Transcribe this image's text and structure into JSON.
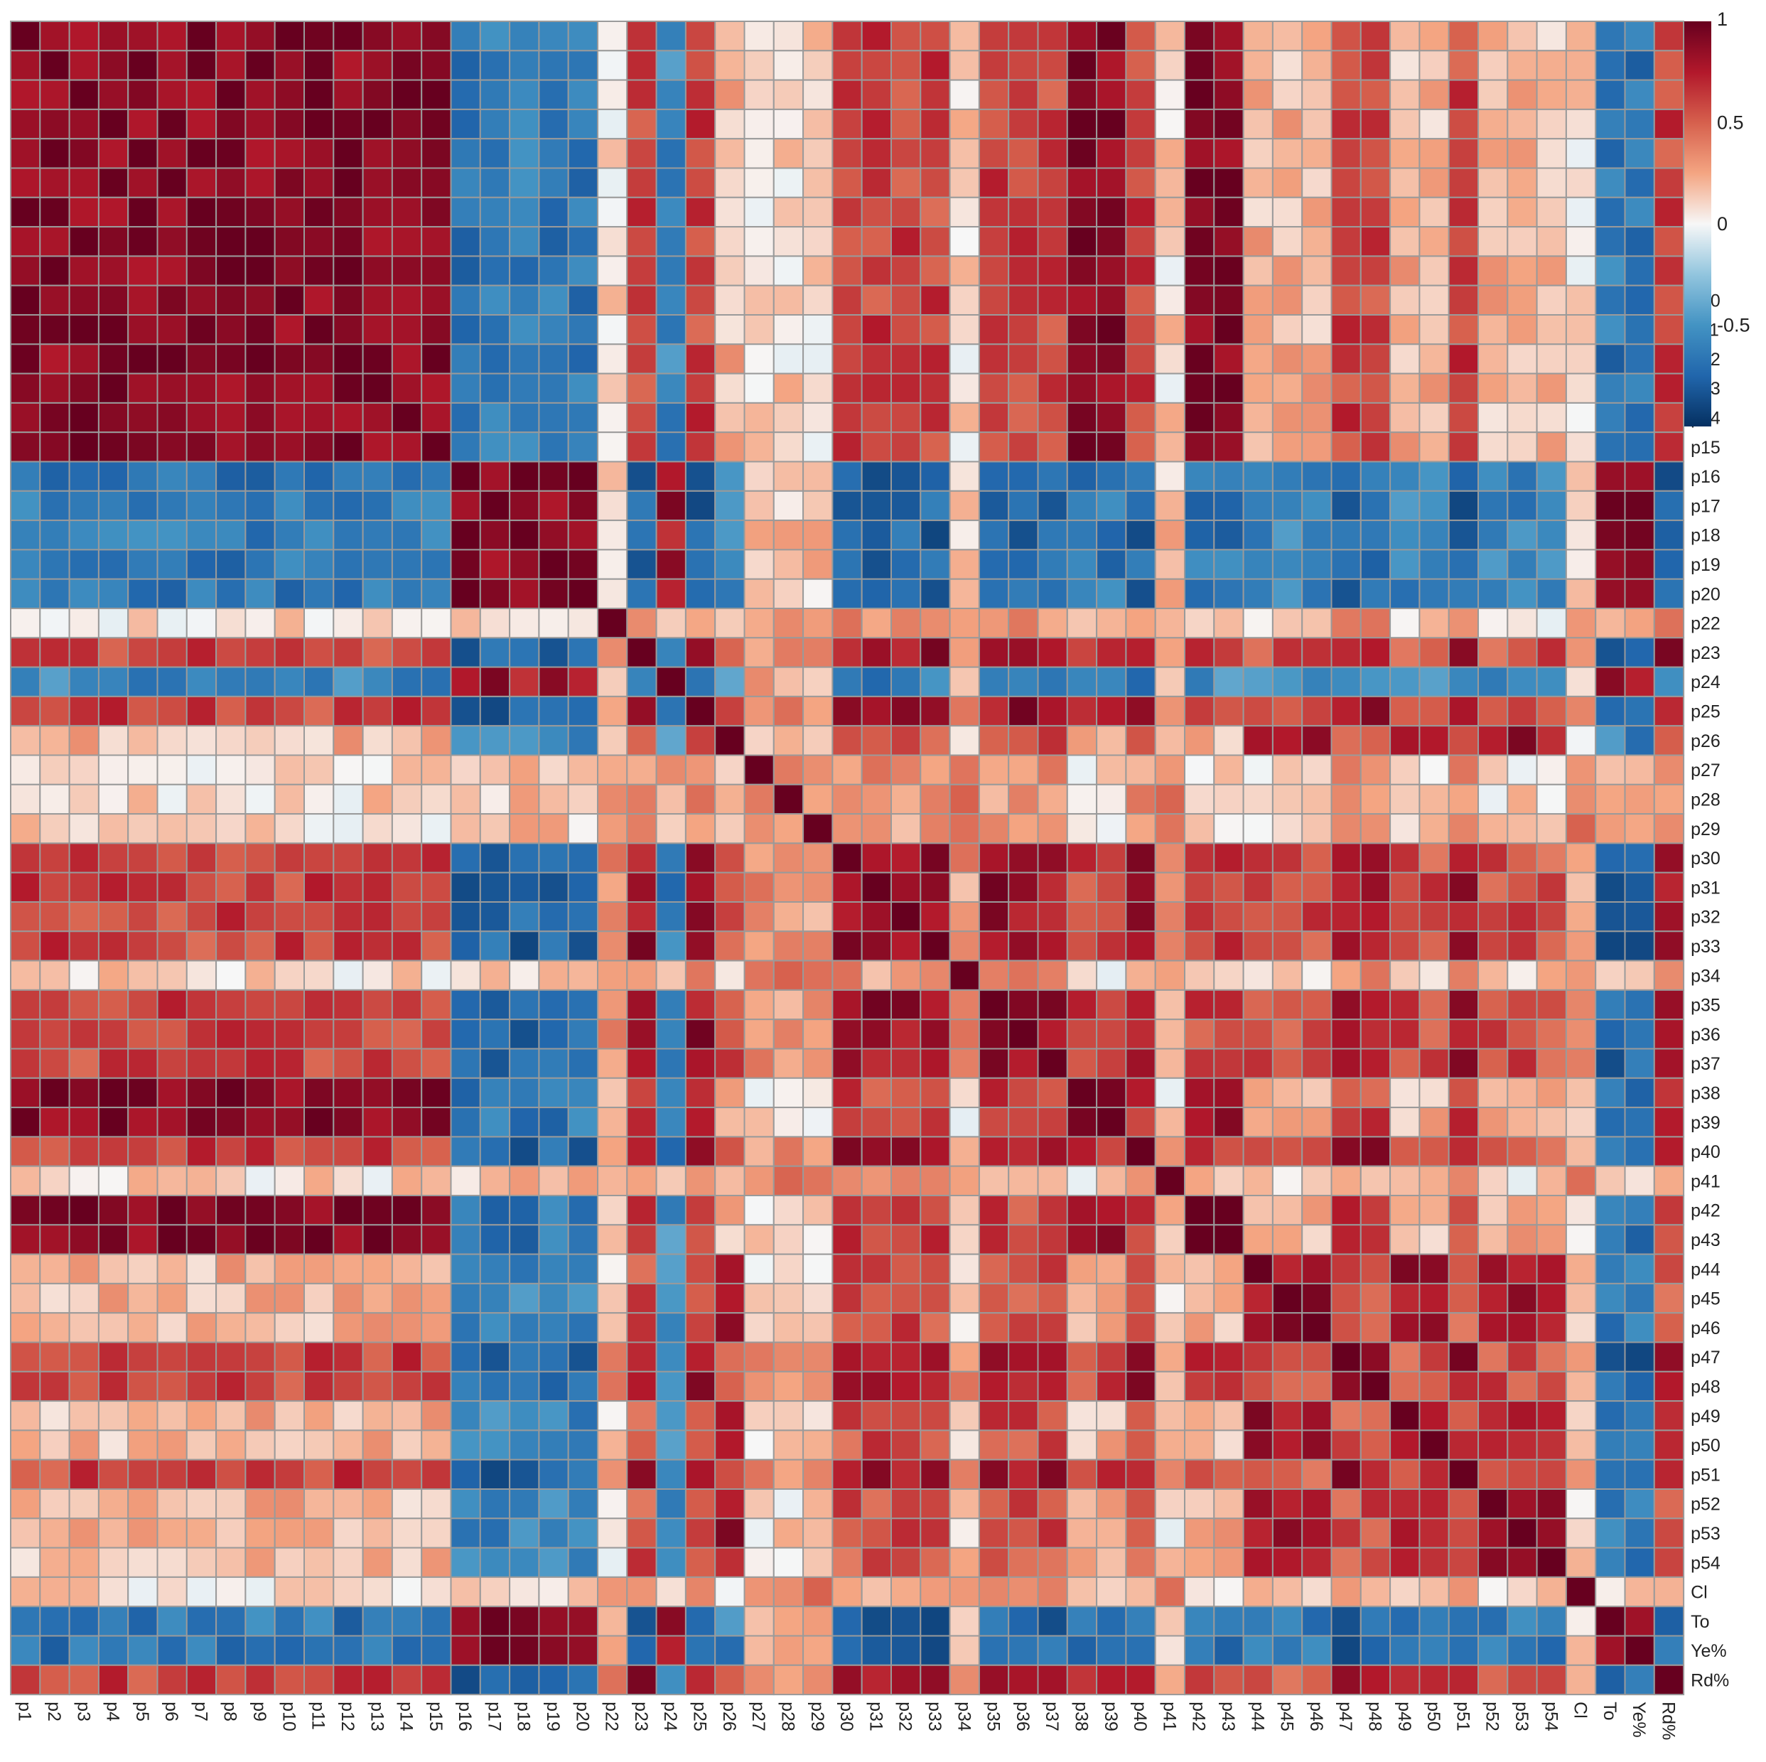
{
  "chart_data": {
    "type": "heatmap",
    "title": "",
    "xlabel": "",
    "ylabel": "",
    "labels": [
      "p1",
      "p2",
      "p3",
      "p4",
      "p5",
      "p6",
      "p7",
      "p8",
      "p9",
      "p10",
      "p11",
      "p12",
      "p13",
      "p14",
      "p15",
      "p16",
      "p17",
      "p18",
      "p19",
      "p20",
      "p22",
      "p23",
      "p24",
      "p25",
      "p26",
      "p27",
      "p28",
      "p29",
      "p30",
      "p31",
      "p32",
      "p33",
      "p34",
      "p35",
      "p36",
      "p37",
      "p38",
      "p39",
      "p40",
      "p41",
      "p42",
      "p43",
      "p44",
      "p45",
      "p46",
      "p47",
      "p48",
      "p49",
      "p50",
      "p51",
      "p52",
      "p53",
      "p54",
      "Cl",
      "To",
      "Ye%",
      "Rd%"
    ],
    "color_scale": {
      "min": -1,
      "max": 1,
      "stops": [
        {
          "value": -1.0,
          "color": "#053061"
        },
        {
          "value": -0.75,
          "color": "#2166ac"
        },
        {
          "value": -0.5,
          "color": "#4393c3"
        },
        {
          "value": -0.25,
          "color": "#92c5de"
        },
        {
          "value": 0.0,
          "color": "#f7f7f7"
        },
        {
          "value": 0.25,
          "color": "#f4a582"
        },
        {
          "value": 0.5,
          "color": "#d6604d"
        },
        {
          "value": 0.75,
          "color": "#b2182b"
        },
        {
          "value": 1.0,
          "color": "#67001f"
        }
      ],
      "ticks": [
        "1",
        "0.5",
        "0",
        "-0.5"
      ],
      "tick_values": [
        1,
        0.5,
        0,
        -0.5
      ]
    },
    "grid_color": "#9a9a9a",
    "groups": {
      "A": [
        "p1",
        "p2",
        "p3",
        "p4",
        "p5",
        "p6",
        "p7",
        "p8",
        "p9",
        "p10",
        "p11",
        "p12",
        "p13",
        "p14",
        "p15",
        "p38",
        "p39",
        "p42",
        "p43"
      ],
      "B": [
        "p16",
        "p17",
        "p18",
        "p19",
        "p20",
        "To",
        "Ye%"
      ],
      "C": [
        "p23",
        "p25",
        "p30",
        "p31",
        "p32",
        "p33",
        "p35",
        "p36",
        "p37",
        "p40",
        "p47",
        "p48",
        "p51",
        "Rd%"
      ],
      "D": [
        "p26",
        "p44",
        "p45",
        "p46",
        "p49",
        "p50",
        "p52",
        "p53",
        "p54"
      ],
      "E": [
        "p22",
        "p27",
        "p28",
        "p29",
        "p34",
        "p41",
        "Cl"
      ],
      "G": [
        "p24"
      ]
    },
    "group_correlation": {
      "A": {
        "A": 0.9,
        "B": -0.65,
        "C": 0.6,
        "D": 0.2,
        "E": 0.1,
        "G": -0.55
      },
      "B": {
        "A": -0.65,
        "B": 0.88,
        "C": -0.75,
        "D": -0.6,
        "E": 0.15,
        "G": 0.8
      },
      "C": {
        "A": 0.6,
        "B": -0.75,
        "C": 0.82,
        "D": 0.55,
        "E": 0.3,
        "G": -0.6
      },
      "D": {
        "A": 0.2,
        "B": -0.6,
        "C": 0.55,
        "D": 0.8,
        "E": 0.1,
        "G": -0.5
      },
      "E": {
        "A": 0.1,
        "B": 0.15,
        "C": 0.3,
        "D": 0.1,
        "E": 0.35,
        "G": 0.2
      },
      "G": {
        "A": -0.55,
        "B": 0.8,
        "C": -0.6,
        "D": -0.5,
        "E": 0.2,
        "G": 1.0
      }
    },
    "diagonal": 1,
    "legend_position": "right"
  }
}
